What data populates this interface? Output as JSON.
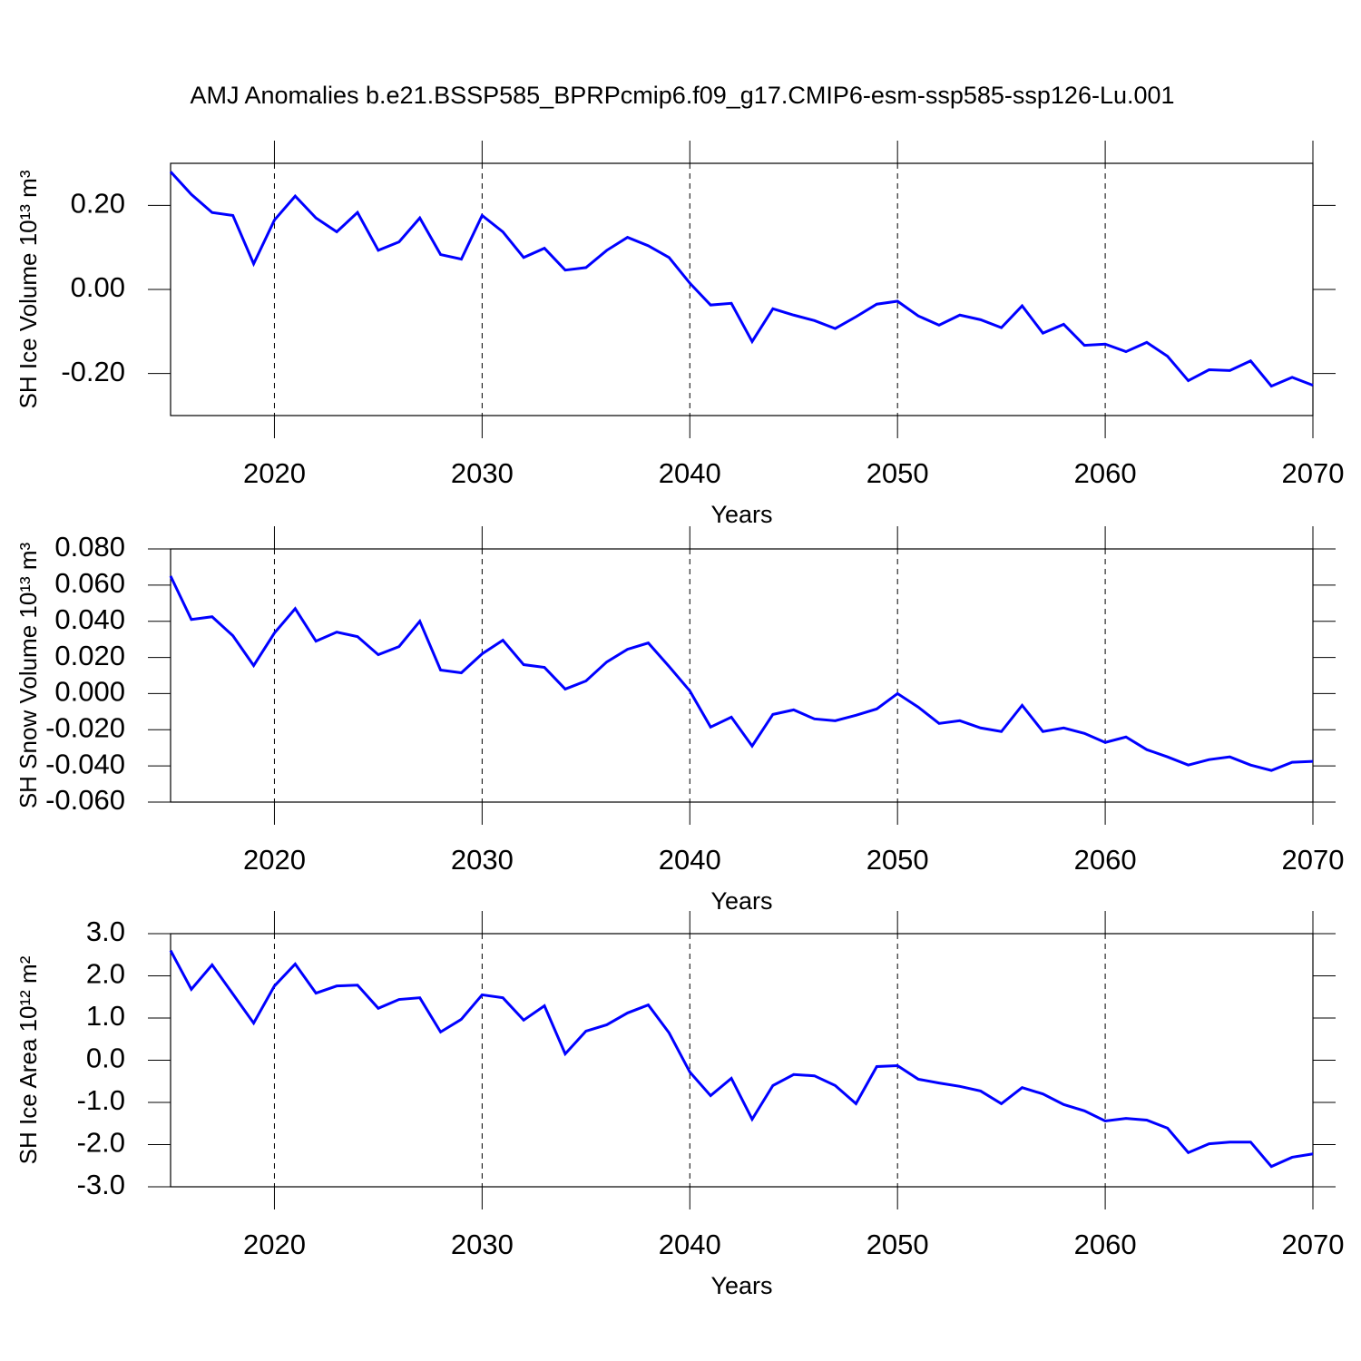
{
  "chart_data": [
    {
      "type": "line",
      "title": "AMJ Anomalies b.e21.BSSP585_BPRPcmip6.f09_g17.CMIP6-esm-ssp585-ssp126-Lu.001",
      "ylabel": "SH Ice Volume 10¹³ m³",
      "xlabel": "Years",
      "color": "#0000ff",
      "xgrid": true,
      "x": [
        2015,
        2016,
        2017,
        2018,
        2019,
        2020,
        2021,
        2022,
        2023,
        2024,
        2025,
        2026,
        2027,
        2028,
        2029,
        2030,
        2031,
        2032,
        2033,
        2034,
        2035,
        2036,
        2037,
        2038,
        2039,
        2040,
        2041,
        2042,
        2043,
        2044,
        2045,
        2046,
        2047,
        2048,
        2049,
        2050,
        2051,
        2052,
        2053,
        2054,
        2055,
        2056,
        2057,
        2058,
        2059,
        2060,
        2061,
        2062,
        2063,
        2064,
        2065,
        2066,
        2067,
        2068,
        2069,
        2070
      ],
      "values": [
        0.28,
        0.226,
        0.183,
        0.176,
        0.061,
        0.165,
        0.222,
        0.17,
        0.137,
        0.183,
        0.093,
        0.113,
        0.17,
        0.083,
        0.072,
        0.176,
        0.137,
        0.076,
        0.098,
        0.046,
        0.052,
        0.093,
        0.124,
        0.104,
        0.076,
        0.015,
        -0.037,
        -0.033,
        -0.124,
        -0.046,
        -0.061,
        -0.074,
        -0.093,
        -0.065,
        -0.035,
        -0.028,
        -0.063,
        -0.085,
        -0.061,
        -0.072,
        -0.091,
        -0.039,
        -0.104,
        -0.083,
        -0.133,
        -0.13,
        -0.148,
        -0.126,
        -0.159,
        -0.217,
        -0.191,
        -0.193,
        -0.17,
        -0.23,
        -0.209,
        -0.228
      ],
      "xlim": [
        2015,
        2070
      ],
      "xticks": [
        2020,
        2030,
        2040,
        2050,
        2060,
        2070
      ],
      "ylim": [
        -0.3,
        0.3
      ],
      "yticks": [
        {
          "value": -0.2,
          "label": "-0.20"
        },
        {
          "value": 0,
          "label": "0.00"
        },
        {
          "value": 0.2,
          "label": "0.20"
        }
      ]
    },
    {
      "type": "line",
      "ylabel": "SH Snow Volume 10¹³ m³",
      "xlabel": "Years",
      "color": "#0000ff",
      "xgrid": true,
      "x": [
        2015,
        2016,
        2017,
        2018,
        2019,
        2020,
        2021,
        2022,
        2023,
        2024,
        2025,
        2026,
        2027,
        2028,
        2029,
        2030,
        2031,
        2032,
        2033,
        2034,
        2035,
        2036,
        2037,
        2038,
        2039,
        2040,
        2041,
        2042,
        2043,
        2044,
        2045,
        2046,
        2047,
        2048,
        2049,
        2050,
        2051,
        2052,
        2053,
        2054,
        2055,
        2056,
        2057,
        2058,
        2059,
        2060,
        2061,
        2062,
        2063,
        2064,
        2065,
        2066,
        2067,
        2068,
        2069,
        2070
      ],
      "values": [
        0.065,
        0.041,
        0.0425,
        0.032,
        0.0155,
        0.0335,
        0.047,
        0.029,
        0.034,
        0.0315,
        0.0215,
        0.026,
        0.04,
        0.013,
        0.0115,
        0.022,
        0.0295,
        0.016,
        0.0145,
        0.0025,
        0.007,
        0.0175,
        0.0245,
        0.028,
        0.015,
        0.0015,
        -0.0185,
        -0.013,
        -0.029,
        -0.0115,
        -0.009,
        -0.014,
        -0.015,
        -0.012,
        -0.0085,
        0,
        -0.0075,
        -0.0165,
        -0.015,
        -0.019,
        -0.021,
        -0.0065,
        -0.021,
        -0.019,
        -0.022,
        -0.027,
        -0.024,
        -0.031,
        -0.035,
        -0.0395,
        -0.0365,
        -0.035,
        -0.0395,
        -0.0425,
        -0.038,
        -0.0375
      ],
      "xlim": [
        2015,
        2070
      ],
      "xticks": [
        2020,
        2030,
        2040,
        2050,
        2060,
        2070
      ],
      "ylim": [
        -0.06,
        0.08
      ],
      "yticks": [
        {
          "value": -0.06,
          "label": "-0.060"
        },
        {
          "value": -0.04,
          "label": "-0.040"
        },
        {
          "value": -0.02,
          "label": "-0.020"
        },
        {
          "value": 0,
          "label": "0.000"
        },
        {
          "value": 0.02,
          "label": "0.020"
        },
        {
          "value": 0.04,
          "label": "0.040"
        },
        {
          "value": 0.06,
          "label": "0.060"
        },
        {
          "value": 0.08,
          "label": "0.080"
        }
      ]
    },
    {
      "type": "line",
      "ylabel": "SH Ice Area 10¹² m²",
      "xlabel": "Years",
      "color": "#0000ff",
      "xgrid": true,
      "x": [
        2015,
        2016,
        2017,
        2018,
        2019,
        2020,
        2021,
        2022,
        2023,
        2024,
        2025,
        2026,
        2027,
        2028,
        2029,
        2030,
        2031,
        2032,
        2033,
        2034,
        2035,
        2036,
        2037,
        2038,
        2039,
        2040,
        2041,
        2042,
        2043,
        2044,
        2045,
        2046,
        2047,
        2048,
        2049,
        2050,
        2051,
        2052,
        2053,
        2054,
        2055,
        2056,
        2057,
        2058,
        2059,
        2060,
        2061,
        2062,
        2063,
        2064,
        2065,
        2066,
        2067,
        2068,
        2069,
        2070
      ],
      "values": [
        2.6,
        1.68,
        2.26,
        1.57,
        0.88,
        1.76,
        2.28,
        1.59,
        1.76,
        1.78,
        1.23,
        1.44,
        1.48,
        0.67,
        0.97,
        1.55,
        1.48,
        0.95,
        1.29,
        0.15,
        0.69,
        0.84,
        1.12,
        1.31,
        0.65,
        -0.28,
        -0.84,
        -0.43,
        -1.4,
        -0.6,
        -0.34,
        -0.37,
        -0.6,
        -1.03,
        -0.15,
        -0.13,
        -0.45,
        -0.54,
        -0.62,
        -0.73,
        -1.03,
        -0.65,
        -0.8,
        -1.05,
        -1.2,
        -1.44,
        -1.38,
        -1.42,
        -1.61,
        -2.19,
        -1.98,
        -1.94,
        -1.94,
        -2.52,
        -2.3,
        -2.22
      ],
      "xlim": [
        2015,
        2070
      ],
      "xticks": [
        2020,
        2030,
        2040,
        2050,
        2060,
        2070
      ],
      "ylim": [
        -3,
        3
      ],
      "yticks": [
        {
          "value": -3,
          "label": "-3.0"
        },
        {
          "value": -2,
          "label": "-2.0"
        },
        {
          "value": -1,
          "label": "-1.0"
        },
        {
          "value": 0,
          "label": "0.0"
        },
        {
          "value": 1,
          "label": "1.0"
        },
        {
          "value": 2,
          "label": "2.0"
        },
        {
          "value": 3,
          "label": "3.0"
        }
      ]
    }
  ]
}
